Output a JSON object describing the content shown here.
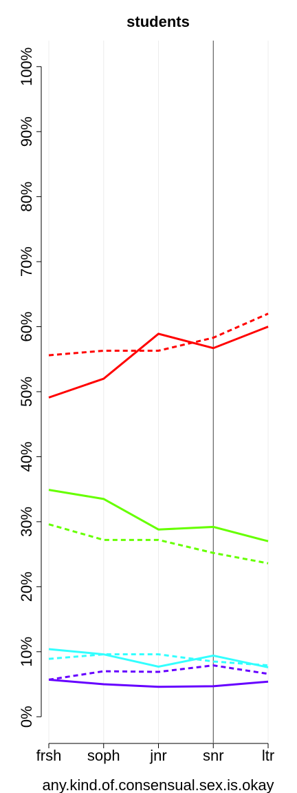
{
  "chart_data": {
    "type": "line",
    "title": "students",
    "xlabel": "any.kind.of.consensual.sex.is.okay",
    "categories": [
      "frsh",
      "soph",
      "jnr",
      "snr",
      "ltr"
    ],
    "series": [
      {
        "color": "#ff0000",
        "dash": false,
        "values": [
          49.1,
          52.0,
          58.9,
          56.7,
          60.0
        ]
      },
      {
        "color": "#ff0000",
        "dash": true,
        "values": [
          55.6,
          56.3,
          56.3,
          58.3,
          62.0
        ]
      },
      {
        "color": "#66ff00",
        "dash": false,
        "values": [
          34.9,
          33.5,
          28.8,
          29.2,
          27.0
        ]
      },
      {
        "color": "#66ff00",
        "dash": true,
        "values": [
          29.6,
          27.2,
          27.2,
          25.2,
          23.6
        ]
      },
      {
        "color": "#33ffff",
        "dash": false,
        "values": [
          10.4,
          9.6,
          7.7,
          9.4,
          7.6
        ]
      },
      {
        "color": "#33ffff",
        "dash": true,
        "values": [
          8.9,
          9.6,
          9.6,
          8.5,
          7.9
        ]
      },
      {
        "color": "#6600ff",
        "dash": true,
        "values": [
          5.7,
          7.0,
          6.9,
          7.9,
          6.6
        ]
      },
      {
        "color": "#6600ff",
        "dash": false,
        "values": [
          5.7,
          5.0,
          4.6,
          4.7,
          5.4
        ]
      }
    ],
    "ylim": [
      -4,
      104
    ],
    "yticks": [
      {
        "value": 0,
        "label": "0%"
      },
      {
        "value": 10,
        "label": "10%"
      },
      {
        "value": 20,
        "label": "20%"
      },
      {
        "value": 30,
        "label": "30%"
      },
      {
        "value": 40,
        "label": "40%"
      },
      {
        "value": 50,
        "label": "50%"
      },
      {
        "value": 60,
        "label": "60%"
      },
      {
        "value": 70,
        "label": "70%"
      },
      {
        "value": 80,
        "label": "80%"
      },
      {
        "value": 90,
        "label": "90%"
      },
      {
        "value": 100,
        "label": "100%"
      }
    ],
    "grid": true,
    "vline_index": 3
  }
}
